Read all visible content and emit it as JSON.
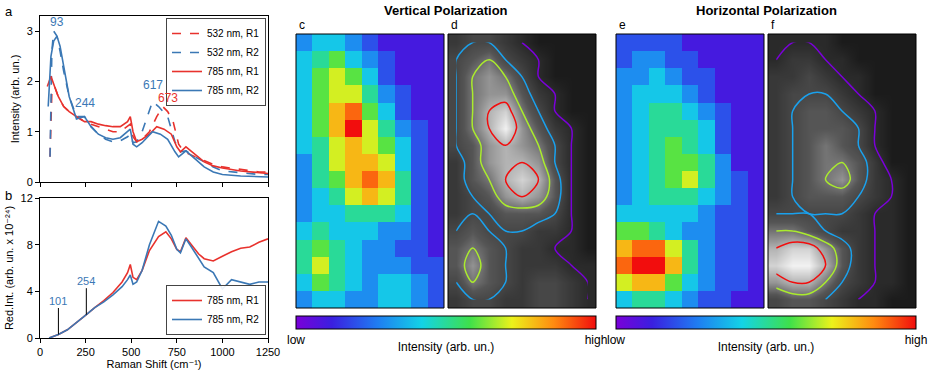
{
  "chart_data": [
    {
      "type": "line",
      "panel_label": "a",
      "ylabel": "Intensity (arb. un.)",
      "xlim": [
        0,
        1250
      ],
      "xticks": [
        0,
        250,
        500,
        750,
        1000,
        1250
      ],
      "ylim": [
        0,
        3.3
      ],
      "yticks": [
        0,
        1,
        2,
        3
      ],
      "tick_labels": "y",
      "grid": false,
      "legend": "top right",
      "series": [
        {
          "name": "532 nm, R1",
          "color": "#e8322d",
          "line_style": "dash",
          "x": [
            55,
            65,
            80,
            100,
            130,
            160,
            200,
            244,
            280,
            320,
            360,
            400,
            440,
            480,
            495,
            510,
            530,
            560,
            600,
            640,
            673,
            700,
            730,
            760,
            790,
            850,
            900,
            950,
            1000,
            1100,
            1200,
            1250
          ],
          "values": [
            0.5,
            1.8,
            1.9,
            1.7,
            1.5,
            1.4,
            1.3,
            1.2,
            1.15,
            1.1,
            1.05,
            1.0,
            1.0,
            1.1,
            1.15,
            0.9,
            0.8,
            0.85,
            1.0,
            1.3,
            1.5,
            1.4,
            1.2,
            0.75,
            0.6,
            0.5,
            0.42,
            0.35,
            0.3,
            0.25,
            0.2,
            0.2
          ]
        },
        {
          "name": "532 nm, R2",
          "color": "#3b78b5",
          "line_style": "dash",
          "x": [
            55,
            65,
            75,
            93,
            110,
            130,
            160,
            200,
            244,
            280,
            320,
            360,
            400,
            440,
            480,
            495,
            510,
            530,
            560,
            600,
            617,
            650,
            700,
            740,
            770,
            800,
            850,
            900,
            950,
            1000,
            1100,
            1200,
            1250
          ],
          "values": [
            0.5,
            2.6,
            3.0,
            2.9,
            2.6,
            2.2,
            1.7,
            1.3,
            1.3,
            1.1,
            0.95,
            0.85,
            0.8,
            0.82,
            0.9,
            0.95,
            0.78,
            0.8,
            1.0,
            1.45,
            1.6,
            1.5,
            1.3,
            0.8,
            0.6,
            0.62,
            0.5,
            0.4,
            0.3,
            0.22,
            0.18,
            0.15,
            0.15
          ]
        },
        {
          "name": "785 nm, R1",
          "color": "#e8322d",
          "line_style": "solid",
          "x": [
            40,
            60,
            80,
            100,
            130,
            160,
            200,
            244,
            280,
            320,
            360,
            400,
            440,
            480,
            495,
            510,
            530,
            560,
            600,
            640,
            680,
            720,
            750,
            770,
            800,
            850,
            900,
            950,
            1000,
            1100,
            1200,
            1250
          ],
          "values": [
            1.9,
            2.1,
            1.9,
            1.7,
            1.5,
            1.4,
            1.3,
            1.2,
            1.2,
            1.15,
            1.12,
            1.1,
            1.1,
            1.2,
            1.3,
            1.0,
            0.8,
            0.85,
            0.95,
            1.1,
            1.05,
            0.95,
            0.7,
            0.6,
            0.7,
            0.55,
            0.4,
            0.32,
            0.28,
            0.22,
            0.18,
            0.17
          ]
        },
        {
          "name": "785 nm, R2",
          "color": "#3b78b5",
          "line_style": "solid",
          "x": [
            45,
            60,
            75,
            93,
            110,
            130,
            160,
            200,
            244,
            280,
            320,
            360,
            400,
            440,
            480,
            495,
            510,
            530,
            560,
            600,
            617,
            660,
            700,
            740,
            760,
            800,
            850,
            900,
            950,
            1000,
            1100,
            1200,
            1250
          ],
          "values": [
            1.5,
            2.5,
            2.8,
            2.9,
            2.7,
            2.3,
            1.7,
            1.25,
            1.3,
            1.1,
            0.95,
            0.88,
            0.85,
            0.88,
            1.0,
            1.05,
            0.75,
            0.7,
            0.78,
            0.95,
            1.0,
            0.95,
            0.85,
            0.6,
            0.5,
            0.62,
            0.45,
            0.3,
            0.2,
            0.15,
            0.12,
            0.1,
            0.1
          ]
        }
      ],
      "annotations": [
        {
          "text": "93",
          "x": 93,
          "y": 3.0,
          "color": "#3b78b5"
        },
        {
          "text": "244",
          "x": 244,
          "y": 1.4,
          "color": "#3b78b5"
        },
        {
          "text": "617",
          "x": 620,
          "y": 1.75,
          "color": "#3b78b5"
        },
        {
          "text": "673",
          "x": 700,
          "y": 1.5,
          "color": "#e8322d"
        }
      ]
    },
    {
      "type": "line",
      "panel_label": "b",
      "xlabel": "Raman Shift (cm⁻¹)",
      "ylabel": "Red.Int. (arb. un. x 10⁻²⁴)",
      "xlim": [
        0,
        1250
      ],
      "xticks": [
        0,
        250,
        500,
        750,
        1000,
        1250
      ],
      "ylim": [
        0,
        12
      ],
      "yticks": [
        0,
        4,
        8,
        12
      ],
      "grid": false,
      "legend": "bottom right",
      "series": [
        {
          "name": "785 nm, R1",
          "color": "#e8322d",
          "line_style": "solid",
          "x": [
            50,
            101,
            150,
            200,
            254,
            300,
            350,
            400,
            450,
            480,
            495,
            510,
            530,
            560,
            600,
            650,
            690,
            720,
            750,
            770,
            800,
            830,
            870,
            900,
            950,
            1000,
            1050,
            1100,
            1150,
            1200,
            1250
          ],
          "values": [
            0,
            0.3,
            0.7,
            1.3,
            2.0,
            2.6,
            3.2,
            3.9,
            4.8,
            5.6,
            6.3,
            5.2,
            5.0,
            5.8,
            7.5,
            8.7,
            9.1,
            8.5,
            7.6,
            7.4,
            8.6,
            8.0,
            7.2,
            6.8,
            6.6,
            7.0,
            7.4,
            7.7,
            7.8,
            8.2,
            8.5
          ]
        },
        {
          "name": "785 nm, R2",
          "color": "#3b78b5",
          "line_style": "solid",
          "x": [
            50,
            101,
            150,
            200,
            254,
            300,
            350,
            400,
            450,
            480,
            495,
            510,
            530,
            560,
            600,
            650,
            690,
            720,
            750,
            770,
            800,
            830,
            870,
            900,
            950,
            1000,
            1050,
            1100,
            1150,
            1200,
            1250
          ],
          "values": [
            0,
            0.3,
            0.7,
            1.3,
            2.0,
            2.6,
            3.1,
            3.7,
            4.4,
            5.0,
            5.4,
            4.6,
            4.8,
            5.8,
            8.0,
            10.0,
            9.6,
            8.8,
            7.6,
            7.3,
            8.5,
            7.8,
            6.8,
            6.1,
            5.6,
            4.2,
            5.0,
            4.8,
            4.6,
            4.8,
            4.8
          ]
        }
      ],
      "annotations": [
        {
          "text": "101",
          "x": 101,
          "y": 0.3,
          "color": "#3b78b5"
        },
        {
          "text": "254",
          "x": 254,
          "y": 2.0,
          "color": "#3b78b5"
        }
      ]
    },
    {
      "type": "heatmap",
      "title": "Vertical Polarization",
      "panel_labels": [
        "c",
        "d"
      ],
      "tick_labels": false,
      "z": [
        [
          3,
          4,
          4,
          3,
          2,
          1,
          1,
          1,
          1
        ],
        [
          4,
          5,
          6,
          4,
          3,
          2,
          1,
          1,
          1
        ],
        [
          4,
          6,
          7,
          6,
          4,
          2,
          1,
          1,
          1
        ],
        [
          4,
          6,
          7,
          7,
          5,
          3,
          2,
          1,
          1
        ],
        [
          4,
          6,
          8,
          9,
          6,
          4,
          2,
          1,
          1
        ],
        [
          4,
          6,
          8,
          10,
          7,
          5,
          3,
          2,
          1
        ],
        [
          4,
          5,
          7,
          8,
          7,
          6,
          4,
          2,
          1
        ],
        [
          3,
          5,
          7,
          8,
          8,
          7,
          4,
          2,
          1
        ],
        [
          3,
          5,
          6,
          8,
          9,
          8,
          5,
          2,
          1
        ],
        [
          3,
          4,
          5,
          7,
          8,
          7,
          5,
          2,
          1
        ],
        [
          3,
          4,
          4,
          5,
          5,
          5,
          4,
          2,
          1
        ],
        [
          4,
          5,
          4,
          4,
          4,
          3,
          3,
          2,
          1
        ],
        [
          5,
          6,
          5,
          4,
          3,
          3,
          2,
          2,
          1
        ],
        [
          5,
          7,
          5,
          4,
          3,
          3,
          3,
          2,
          2
        ],
        [
          4,
          6,
          5,
          4,
          3,
          4,
          4,
          3,
          2
        ],
        [
          3,
          4,
          4,
          3,
          3,
          4,
          4,
          3,
          2
        ]
      ],
      "colorbar": {
        "range": [
          0,
          10
        ],
        "ticks": [
          {
            "value": 0,
            "label": "low"
          },
          {
            "value": 10,
            "label": "high"
          }
        ],
        "title": "Intensity (arb. un.)"
      }
    },
    {
      "type": "heatmap",
      "title": "Horizontal Polarization",
      "panel_labels": [
        "e",
        "f"
      ],
      "tick_labels": false,
      "z": [
        [
          2,
          2,
          2,
          2,
          1,
          1,
          1,
          1,
          1
        ],
        [
          2,
          3,
          3,
          2,
          2,
          1,
          1,
          1,
          1
        ],
        [
          3,
          3,
          4,
          3,
          2,
          2,
          1,
          1,
          1
        ],
        [
          3,
          4,
          4,
          4,
          3,
          2,
          1,
          1,
          1
        ],
        [
          3,
          4,
          5,
          5,
          4,
          3,
          2,
          1,
          1
        ],
        [
          3,
          4,
          5,
          5,
          5,
          4,
          2,
          1,
          1
        ],
        [
          3,
          4,
          5,
          6,
          5,
          4,
          2,
          1,
          1
        ],
        [
          3,
          4,
          5,
          6,
          6,
          5,
          3,
          1,
          1
        ],
        [
          3,
          4,
          5,
          6,
          7,
          5,
          3,
          2,
          1
        ],
        [
          3,
          4,
          5,
          5,
          5,
          4,
          3,
          2,
          1
        ],
        [
          4,
          4,
          4,
          4,
          4,
          3,
          2,
          2,
          1
        ],
        [
          6,
          6,
          5,
          4,
          3,
          3,
          2,
          2,
          1
        ],
        [
          8,
          9,
          9,
          7,
          5,
          3,
          2,
          2,
          1
        ],
        [
          9,
          10,
          10,
          8,
          5,
          3,
          2,
          2,
          1
        ],
        [
          7,
          8,
          8,
          6,
          4,
          3,
          2,
          2,
          1
        ],
        [
          4,
          5,
          5,
          4,
          3,
          2,
          2,
          1,
          1
        ]
      ],
      "colorbar": {
        "range": [
          0,
          10
        ],
        "ticks": [
          {
            "value": 0,
            "label": "low"
          },
          {
            "value": 10,
            "label": "high"
          }
        ],
        "title": "Intensity (arb. un.)"
      }
    }
  ]
}
